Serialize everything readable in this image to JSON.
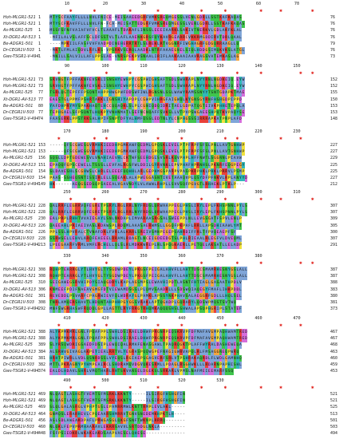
{
  "figure": {
    "species": [
      "Hoh-MLGR1-521",
      "Hoh-MLGR1-521",
      "As-MLGR1-525",
      "Xt-DGR1-AV-513",
      "Be-ADGR1-501",
      "Dr-CEGR1V-503",
      "Gws-TSGR1-V-494"
    ],
    "colors": {
      "A": "#7fa5d8",
      "I": "#7fa5d8",
      "L": "#7fa5d8",
      "M": "#7fa5d8",
      "F": "#7fa5d8",
      "W": "#7fa5d8",
      "V": "#7fa5d8",
      "C": "#f5a3b0",
      "K": "#e8413a",
      "R": "#e8413a",
      "E": "#d56edb",
      "D": "#d56edb",
      "N": "#3fc54c",
      "Q": "#3fc54c",
      "S": "#3fc54c",
      "T": "#3fc54c",
      "G": "#f2a541",
      "P": "#f0e13d",
      "H": "#30b8b8",
      "Y": "#30b8b8",
      "dot": "#ffffff",
      "gap": "#ffffff",
      "star": "#e0201b"
    },
    "blocks": [
      {
        "ticks": [
          "10",
          "20",
          "30",
          "40",
          "50",
          "60",
          "70"
        ],
        "ends": [
          "76",
          "76",
          "76",
          "76",
          "79",
          "76",
          "73"
        ],
        "starts": [
          "1",
          "1",
          "1",
          "1",
          "1",
          "1",
          "1"
        ],
        "rows": [
          "MTYSCFAAYFLLLLNVLFNICE-MEISAAEEDGRFVMKSREQMGESSLVENLGDRLLSSTKAFKAQAS",
          "MTYSCFKAVFFLLLNVLFN-FCA-MEISATTEDGRFVMKSREQMGESSLVENLGDRLLSSTKAFKAQAS",
          "MSSFSFNFVAIAFVFVCLTLAAAFLTDAKAFLINSSLEEEIAARKLSAKIVTNERKVLGDLAKFKLAL",
          "-MFILALVSLAFFSCLDFSSTVLTLAFLAAENKGRSFQYKAVRGEARRCVKKRMGDDIRVTDRLQAAL",
          "----MPKIILFASFVVFVADPDINEHERRTRTLSEREKLRTVGGNRFIWGHAGRFGDGQRRAAGLLQ",
          "-MKTLFMLAIQDVLRFLKS-VPSRKVSERQLAADKLNTRFAAAEGNELSIQLHDDGSIMQKVKSLATGL",
          "-MNILLSALVILLAFLPPSLAE-VNRSPEKPVSNAALIRIFLAAKAAAIAAVRAGSVATEMKASLAG"
        ]
      },
      {
        "ticks": [
          "90",
          "100",
          "110",
          "120",
          "130",
          "140",
          "150"
        ],
        "ends": [
          "152",
          "152",
          "155",
          "150",
          "153",
          "153",
          "148"
        ],
        "starts": [
          "73",
          "73",
          "77",
          "77",
          "80",
          "77",
          "74"
        ],
        "rows": [
          "SRVNGTFPFFAKNFEVSKLISNSHYEWHPYCGSPWIGHSAFTSDLSWHRAPLNYYRNLNGDKEIQ.EYW",
          "SRVHGTFPFFAKNFEVSKLISNSHYEWHPYCGSPWIGHSAFTSDLSWHRAPLNYYRNLNGDKEIQ.EYW",
          "TSRLQGTEPFFFPSQNTAHPPHWGPWFDDSWFIWLRGNSNLSSLWAWYRAMSSNYYTSNTGDAPKTMAE",
          "EAESTGLPPMFPSHRTAKKLIGNSHIYAPDPLCGWPVIHRGFAIGWQLKYGNSGYRNFHSHGDPIPPD",
          "YAFDHPRYMYSPAKHAQTEHCCQQAQKLSLPLCGNIQDQIDRITAELGDPATQGTEIVKPHHETEPQLA",
          "TEPHGAELSFPSQNTLHQKPYVNHNMATLSEFNCNQAFFSVKSLLVTPVPSWGAEESHPQTKVPAQYSE",
          "FAASERKLPPSTRKSALHPIFSNPTDFYALHMFQSSLEDTNLYLCNPHGSSSIRRRAPKATPNPLAFD"
        ]
      },
      {
        "ticks": [
          "170",
          "180",
          "190",
          "200",
          "210",
          "220",
          "230"
        ],
        "ends": [
          "227",
          "227",
          "229",
          "225",
          "225",
          "227",
          "212"
        ],
        "starts": [
          "153",
          "153",
          "156",
          "151",
          "154",
          "154",
          "149"
        ],
        "rows": [
          "-----QFSCGWESGVRMHKIEEDHPGMKAWFQEDMLGPQSKLEVELPTPFRPFSFSLPNLLAVTGNHWP",
          "-----QFSCGWESGVRMHKIEEDHPGMKAWFQEDMLGPQSKLEVELPTPFRPFSFSLPNLLAVTGNHWP",
          "SQSLLDPTGDEWESVLVNAHIAEVHLCKTWFSEEHDGLSVSRLKQVPHPLHFFNWTLSGGNNLPIAVW",
          "EPAQQFGPSCEWELLTSSSLLEVFALRGSFWLDDILGYRVNKLEPVPHAFHPRNHSLPKNRFEQGPEGY",
          "SLDAVESHLSCGHWSLCHRLELEEEFQQHHLARLGEPHMGSPARPVPASPKRPHKLPHKLPRRVLPSMP",
          "PAAS-SSHEQSNTISSIRLELLSQEAKLALAPWEGGASNTIVETAAAQVPLQSYDFPFNKVLRPLANYYD",
          "HK------AEQGSEDSQPSAEEALVGAVNDYLVLAWWLRHPLLSVVSQFPGVGTLRHAEKLPTKLP---"
        ]
      },
      {
        "ticks": [
          "250",
          "260",
          "270",
          "280",
          "290",
          "300",
          "310"
        ],
        "ends": [
          "307",
          "307",
          "309",
          "305",
          "300",
          "307",
          "291"
        ],
        "starts": [
          "228",
          "228",
          "230",
          "226",
          "226",
          "228",
          "213"
        ],
        "rows": [
          "QALRRFLEGRRVQFEGRETPSRYLRGLRRLNYFRDSLQRWAAPPEGLPHSLIRYLEPLFKHSPNNLPYLS",
          "QALRRFLEGRRVQFEGRETPSRYLRGLRRLNYFRDSLQRWAAPPEGLPHSLIRYLEPLFKHSPNNLPYLS",
          "EALPRPLRHHTVVAIEGAYLSNLNKDAPLIMVARAASRGSALSWEEPPLNLLEVGSGATFSPVLENLP",
          "QAEEAHLPRIAEIVASLKDAWSPLRDQMLAAASAERWMSLLGGQFPKPAFLRRLLAPSDHIAAWLYMT",
          "PPLSSLHPVRALCTVNAFDRLFVRLALKRRLSREIVSMNPEGEPSAHRDIFFRLTFPVQEAEPFSF",
          "SSRWSELLEHVLARQFEAEEELRRAMLRDAGTLNCEIGDEEDGTSLPHLRIEAALRLEGFVLDVEQML",
          "LPEEGAARFVRMLVMFERCHELLQLSLRLMDKKWREPLNLSPQGKAERLLPETQELAKSATLLELADP"
        ]
      },
      {
        "ticks": [
          "330",
          "340",
          "350",
          "360",
          "370",
          "380"
        ],
        "ends": [
          "387",
          "387",
          "388",
          "383",
          "380",
          "381",
          "373"
        ],
        "starts": [
          "308",
          "308",
          "310",
          "306",
          "301",
          "308",
          "292"
        ],
        "rows": [
          "RQHPTEARRGLYTLHVYGLTYSGDWPDEYLPKGSFPEIGALAHVFLLAHTTDSCSMAMRHESNYGSLALL",
          "RQHPTEARRGLYTLHVYGLTYSGDWPDEYLPKGSFPEIGALAHVFLLAHTTDSCSMAMRHESNYGSLALL",
          "SEIGAWEGSRVHIPDYSIAQGDRYLKAPLAGSMPSLEWAVHIPDTLASNTFHTIAGLGASAATHPDLV",
          "KNMEEFPDIFNAEAVGMGFDTVIEWAMDSGSLPLQMVSAADRLLLSDSWQIAQEGYFMAFLIHKPDDL",
          "REVEDDLPSVARFCPAGRWIEVFQLWDRAYGLPAMKLAPSSYNKPHAVSALAEGGRFGDLLLHQLSEL",
          "TNRLAMQERSHAVTLHDQNTAHPHHPGYGGSVRAKLAPTQGADPLGQRARYLQDSWPMQSTSVTWQ",
          "MNFSWGRHASWFRQDQLGPLLAGTTLRYFRRGTRHQMKAQQQSHSLSHWALAPSQPHGRIPLSTATEF"
        ]
      },
      {
        "ticks": [
          "410",
          "420",
          "430",
          "440",
          "450",
          "460",
          "470"
        ],
        "ends": [
          "467",
          "467",
          "468",
          "463",
          "460",
          "459",
          "453"
        ],
        "starts": [
          "388",
          "388",
          "389",
          "384",
          "381",
          "382",
          "374"
        ],
        "rows": [
          "ALYKPMKMRLGNLFPQAFPPLSWHLDSIRAELDHWFPRGNRPEQSKRVPFDFMAFAVGMPAQHWAMTRED",
          "ALYKPMKMRLGNLFPQAFPPLSWHLDSIRAELDHWFPRGNRPEQSKRVPFDFMAFAVGMPAQHWAMTRED",
          "SLYRSQWDRIGSAEDFDSIPLEWQIQALRMAFENASGAWLTPAQRQGKTPLAFFWYRALDASHEWEQA",
          "ALSRHVGIVAGLAKPEYIEALRRTVLYEGRASPQQWGPEFNAGIGWRVAPQLRLFMSAGGNEQPWRQ",
          "HRHTPIWRLLVDLQSNRDSSLVYEQSLRGIAEPSGAGVERFSRLVTPSHRAKAQRDLFLWDLGAMNHQ",
          "MTTLPKRAGNYPYHMPEAIRCLSHDRAMQVDGVQKESRMLLPDAGLRSGHWKLLLRDARNPAPHISHL",
          "EALDLHDAVLSHRLVMQTHARLRHTSKVANSELDGEKSLSRKARLVPMSLNAFMEIEEMARFSSQ"
        ]
      },
      {
        "ticks": [
          "490",
          "500",
          "510",
          "520",
          "530"
        ],
        "ends": [
          "521",
          "521",
          "525",
          "513",
          "501",
          "503",
          "494"
        ],
        "starts": [
          "469",
          "469",
          "469",
          "464",
          "456",
          "460",
          "448"
        ],
        "rows": [
          "NLQAGTLASHGTFVEMTSFMSRKLKKNTY-----ILSIRGFHSHGFIN",
          "NLQAGTLASHGTFVEMTSFMSRKLKKNTY-----ILSIRGFHSHGFIN",
          "SLQLGALASRGLVPHPTGSLEPAMRRMWLKNTTRMPLEVLAKL-----",
          "GNMQSLERARHEVLCPQEAARSHMRRVTGNVSNEDEMKHPKTLH----",
          "ASLSDLAWEAKDPAFLPRWGASGLQKGFSNFTWKNPLRRRQ-------",
          "NLQKLFEPVPRMHAARAVLEKRRSAVVLSRTDDGLNKLA---------",
          "FSFPSIEDKRLWKAKEAKDSAAPVAESELQHESE--------------"
        ]
      }
    ]
  }
}
